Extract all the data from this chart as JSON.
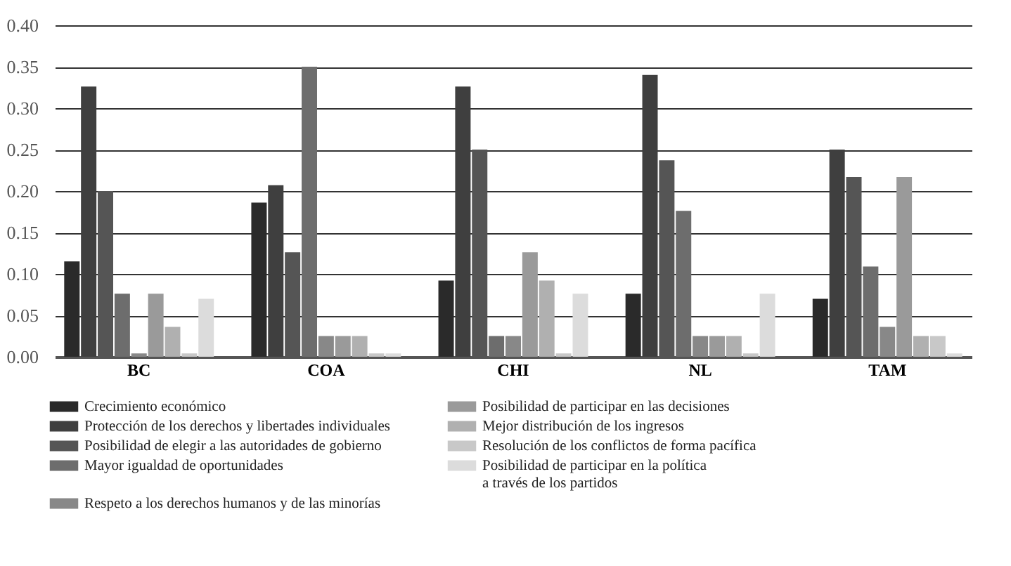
{
  "chart_data": {
    "type": "bar",
    "categories": [
      "BC",
      "COA",
      "CHI",
      "NL",
      "TAM"
    ],
    "series": [
      {
        "name": "Crecimiento económico",
        "color": "#2a2a2a",
        "values": [
          0.115,
          0.186,
          0.092,
          0.076,
          0.07
        ]
      },
      {
        "name": "Protección de los derechos y libertades individuales",
        "color": "#3f3f3f",
        "values": [
          0.326,
          0.207,
          0.326,
          0.34,
          0.25
        ]
      },
      {
        "name": "Posibilidad de elegir a las autoridades de gobierno",
        "color": "#555555",
        "values": [
          0.2,
          0.126,
          0.25,
          0.237,
          0.217
        ]
      },
      {
        "name": "Mayor igualdad de oportunidades",
        "color": "#6d6d6d",
        "values": [
          0.076,
          0.35,
          0.025,
          0.176,
          0.109
        ]
      },
      {
        "name": "Respeto a los derechos humanos y de las minorías",
        "color": "#888888",
        "values": [
          0.004,
          0.025,
          0.025,
          0.025,
          0.036
        ]
      },
      {
        "name": "Posibilidad de participar en las decisiones",
        "color": "#9a9a9a",
        "values": [
          0.076,
          0.025,
          0.126,
          0.025,
          0.217
        ]
      },
      {
        "name": "Mejor distribución de los ingresos",
        "color": "#b0b0b0",
        "values": [
          0.036,
          0.025,
          0.092,
          0.025,
          0.025
        ]
      },
      {
        "name": "Resolución de los conflictos de forma pacífica",
        "color": "#c8c8c8",
        "values": [
          0.004,
          0.004,
          0.004,
          0.004,
          0.025
        ]
      },
      {
        "name": "Posibilidad de participar en la política a través de los partidos",
        "color": "#dcdcdc",
        "values": [
          0.07,
          0.004,
          0.076,
          0.076,
          0.004
        ]
      }
    ],
    "ylim": [
      0,
      0.4
    ],
    "yticks": [
      {
        "value": 0,
        "label": "0.00"
      },
      {
        "value": 0.05,
        "label": "0.05"
      },
      {
        "value": 0.1,
        "label": "0.10"
      },
      {
        "value": 0.15,
        "label": "0.15"
      },
      {
        "value": 0.2,
        "label": "0.20"
      },
      {
        "value": 0.25,
        "label": "0.25"
      },
      {
        "value": 0.3,
        "label": "0.30"
      },
      {
        "value": 0.35,
        "label": "0.35"
      },
      {
        "value": 0.4,
        "label": "0.40"
      }
    ],
    "grid": "y",
    "legend": "bottom"
  }
}
